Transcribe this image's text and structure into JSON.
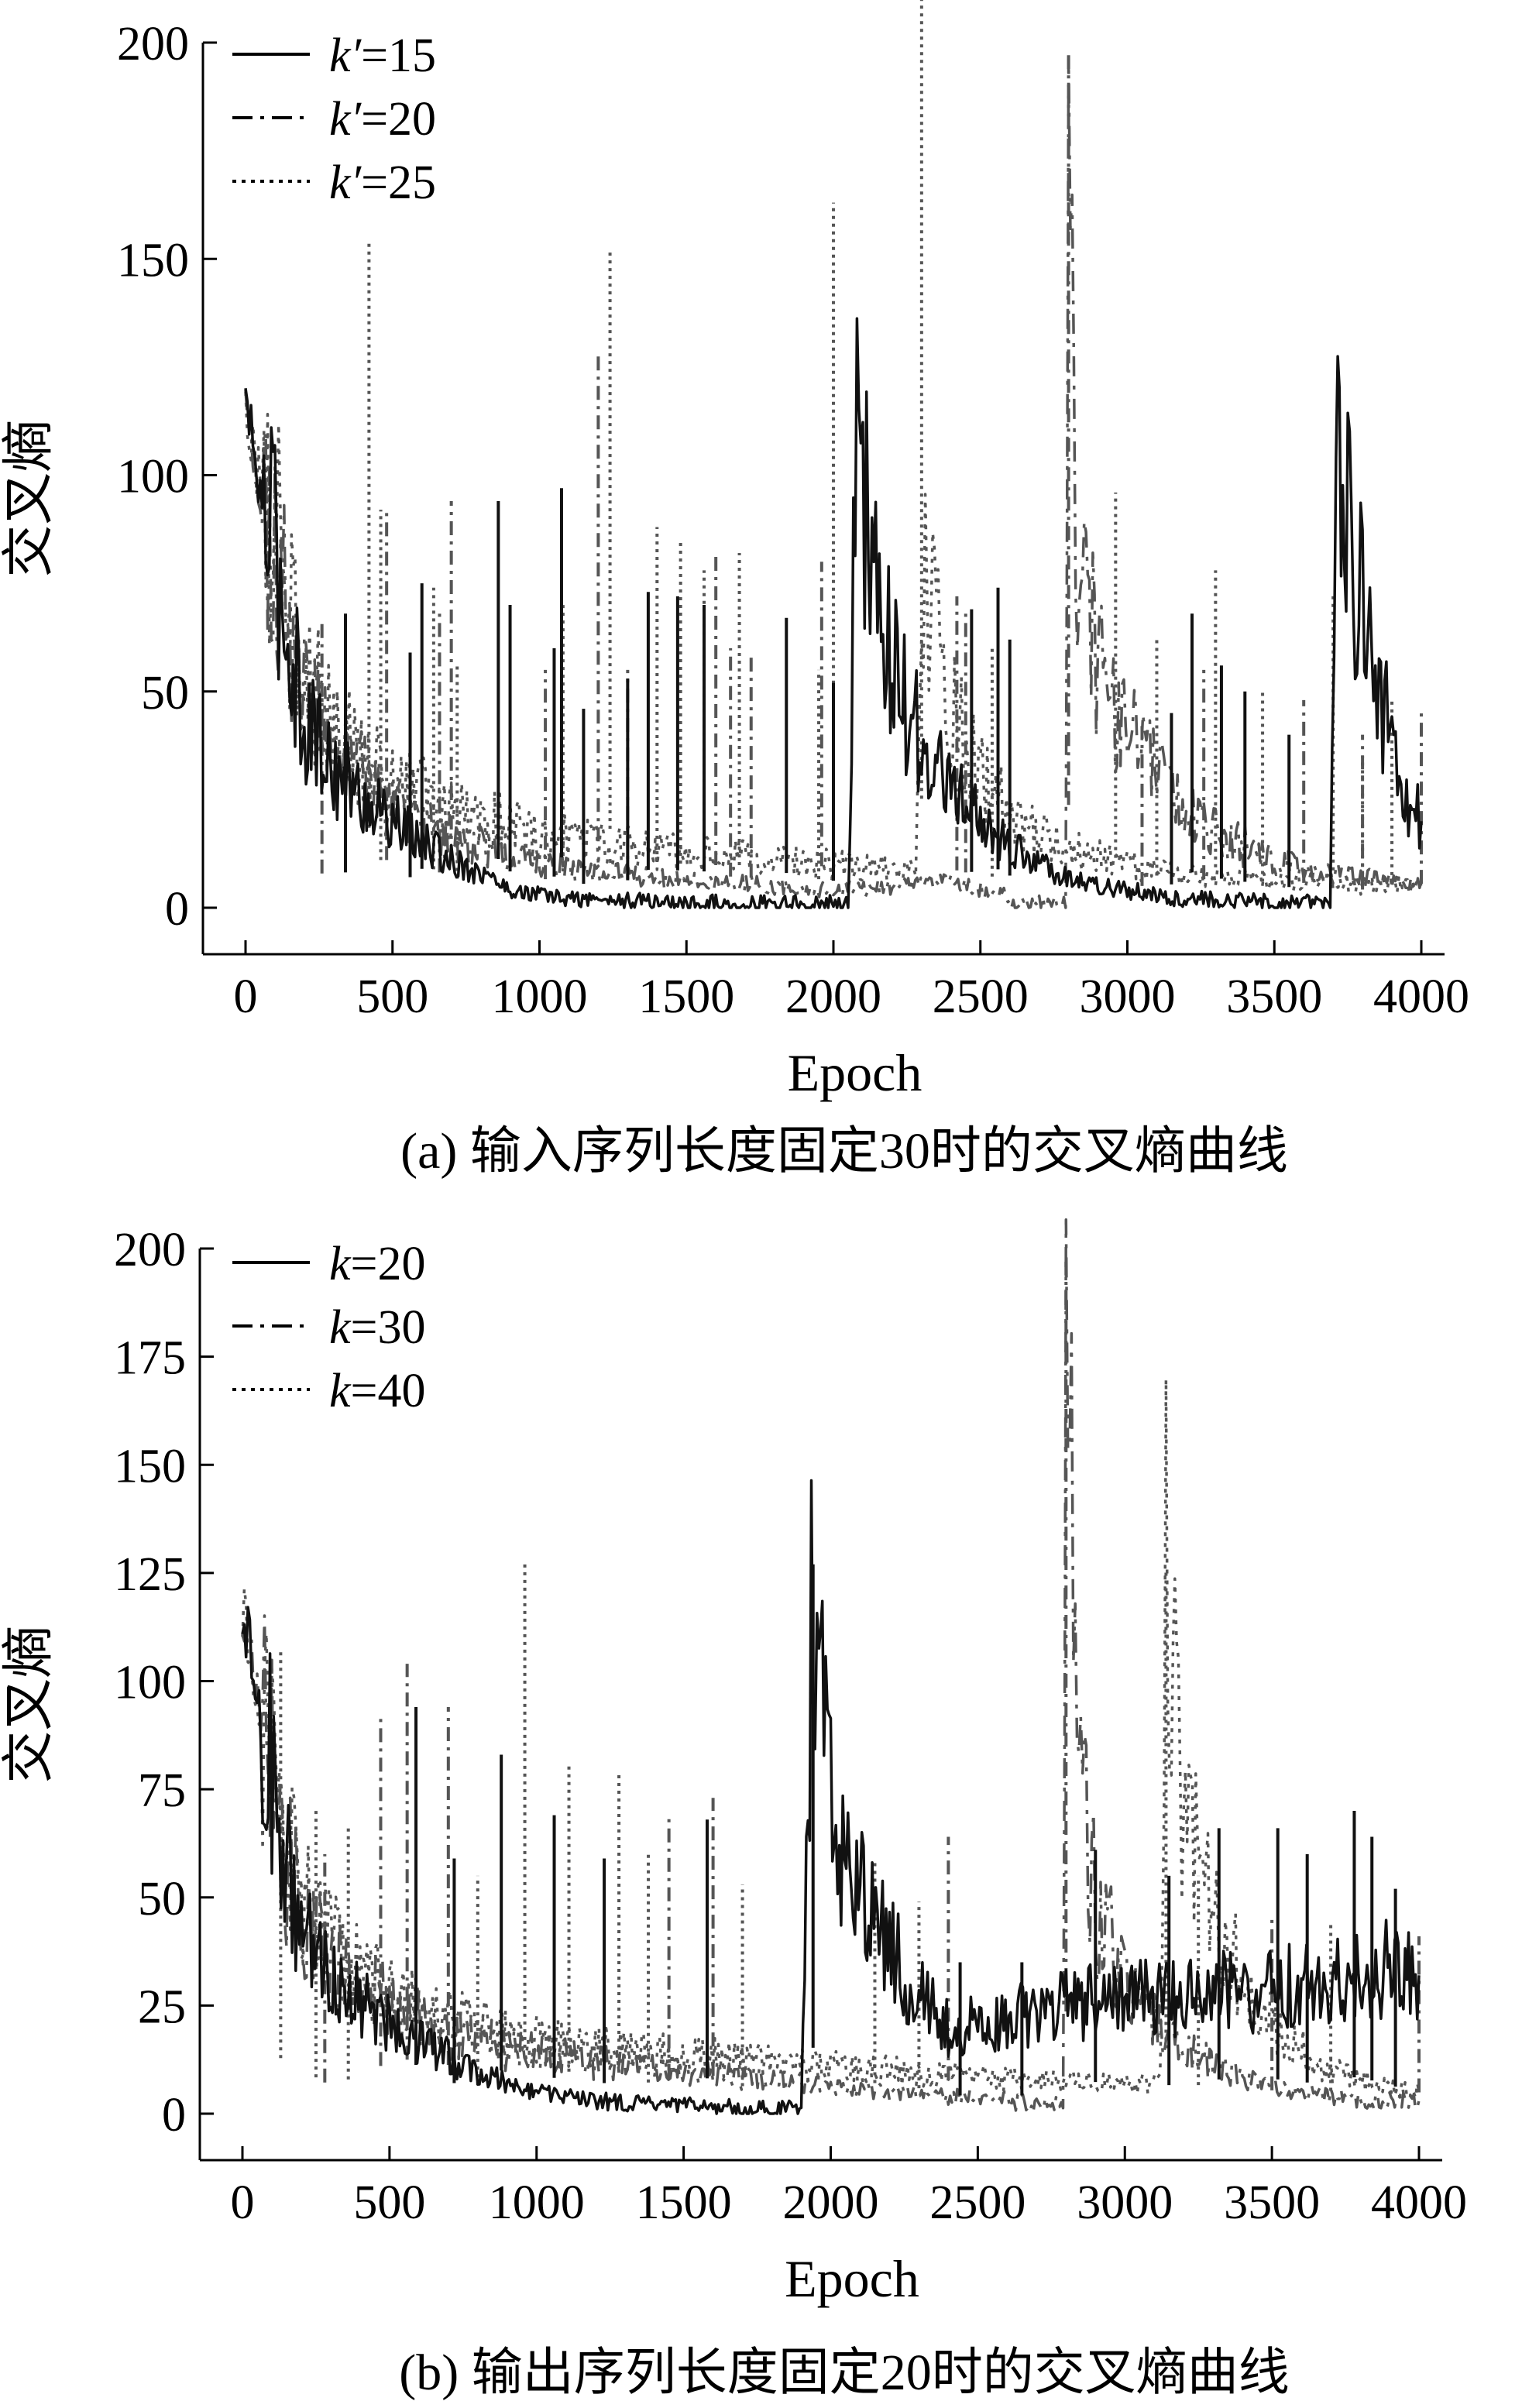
{
  "chart_data": [
    {
      "type": "line",
      "caption": "(a) 输入序列长度固定30时的交叉熵曲线",
      "xlabel": "Epoch",
      "ylabel": "交叉熵",
      "xlim": [
        0,
        4000
      ],
      "ylim": [
        0,
        200
      ],
      "xticks": [
        0,
        500,
        1000,
        1500,
        2000,
        2500,
        3000,
        3500,
        4000
      ],
      "yticks": [
        0,
        50,
        100,
        150,
        200
      ],
      "grid": false,
      "legend": "top-left",
      "series": [
        {
          "name_prefix": "k′",
          "name_value": "=15",
          "style": "solid",
          "color": "#111111",
          "x": [
            0,
            50,
            100,
            150,
            200,
            300,
            400,
            500,
            600,
            700,
            800,
            860,
            900,
            1000,
            1100,
            1200,
            1300,
            1400,
            1500,
            1600,
            1700,
            1800,
            1900,
            2000,
            2050,
            2080,
            2100,
            2150,
            2200,
            2300,
            2400,
            2500,
            2600,
            2700,
            2800,
            2900,
            3000,
            3100,
            3200,
            3300,
            3400,
            3500,
            3600,
            3690,
            3710,
            3750,
            3800,
            3850,
            3900,
            3950,
            4000
          ],
          "y": [
            118,
            95,
            82,
            60,
            44,
            32,
            25,
            20,
            15,
            11,
            8,
            6,
            4,
            3,
            2,
            2,
            1.5,
            1.5,
            1,
            1,
            1,
            1,
            1,
            1,
            1,
            117,
            95,
            70,
            55,
            38,
            27,
            20,
            14,
            10,
            7,
            5,
            4,
            3,
            2,
            2,
            1.5,
            1,
            1,
            1,
            115,
            90,
            68,
            52,
            38,
            25,
            20
          ],
          "spikes": [
            [
              340,
              68
            ],
            [
              560,
              59
            ],
            [
              600,
              75
            ],
            [
              860,
              94
            ],
            [
              900,
              70
            ],
            [
              1050,
              60
            ],
            [
              1075,
              97
            ],
            [
              1150,
              46
            ],
            [
              1300,
              53
            ],
            [
              1370,
              73
            ],
            [
              1470,
              72
            ],
            [
              1560,
              70
            ],
            [
              1840,
              67
            ],
            [
              2000,
              52
            ],
            [
              2470,
              69
            ],
            [
              2560,
              74
            ],
            [
              2600,
              62
            ],
            [
              3150,
              45
            ],
            [
              3220,
              68
            ],
            [
              3320,
              56
            ],
            [
              3400,
              50
            ],
            [
              3550,
              40
            ]
          ]
        },
        {
          "name_prefix": "k′",
          "name_value": "=20",
          "style": "dashdot",
          "color": "#555555",
          "x": [
            0,
            50,
            100,
            150,
            200,
            300,
            400,
            500,
            600,
            700,
            800,
            900,
            1000,
            1200,
            1400,
            1600,
            1800,
            2000,
            2200,
            2400,
            2580,
            2600,
            2700,
            2790,
            2800,
            2830,
            2900,
            3000,
            3100,
            3200,
            3300,
            3400,
            3500,
            3600,
            3700,
            3800,
            3900,
            4000
          ],
          "y": [
            117,
            97,
            85,
            65,
            50,
            38,
            30,
            24,
            19,
            16,
            14,
            12,
            10,
            8,
            7,
            6,
            5,
            4,
            5,
            6,
            3,
            1,
            1,
            1,
            198,
            80,
            55,
            40,
            30,
            22,
            17,
            14,
            11,
            9,
            8,
            7,
            6,
            6
          ],
          "spikes": [
            [
              260,
              66
            ],
            [
              480,
              92
            ],
            [
              660,
              68
            ],
            [
              700,
              94
            ],
            [
              1020,
              55
            ],
            [
              1200,
              128
            ],
            [
              1300,
              55
            ],
            [
              1600,
              82
            ],
            [
              1650,
              60
            ],
            [
              1720,
              58
            ],
            [
              1960,
              80
            ],
            [
              2420,
              72
            ],
            [
              2450,
              68
            ],
            [
              2800,
              198
            ],
            [
              3050,
              42
            ],
            [
              3260,
              55
            ],
            [
              3600,
              48
            ],
            [
              3800,
              40
            ],
            [
              4000,
              46
            ]
          ]
        },
        {
          "name_prefix": "k′",
          "name_value": "=25",
          "style": "dotted",
          "color": "#555555",
          "x": [
            0,
            50,
            100,
            150,
            200,
            300,
            400,
            500,
            600,
            700,
            800,
            900,
            1000,
            1200,
            1400,
            1600,
            1800,
            2000,
            2200,
            2280,
            2300,
            2350,
            2400,
            2500,
            2600,
            2700,
            2800,
            2900,
            3000,
            3100,
            3200,
            3300,
            3400,
            3500,
            3600,
            3700,
            3800,
            3900,
            4000
          ],
          "y": [
            116,
            98,
            88,
            70,
            55,
            42,
            35,
            30,
            26,
            23,
            21,
            19,
            17,
            15,
            13,
            12,
            11,
            10,
            9,
            8,
            80,
            60,
            45,
            30,
            22,
            17,
            14,
            12,
            10,
            9,
            8,
            7,
            7,
            6,
            6,
            6,
            5,
            5,
            5
          ],
          "spikes": [
            [
              420,
              154
            ],
            [
              460,
              92
            ],
            [
              640,
              74
            ],
            [
              720,
              56
            ],
            [
              1080,
              70
            ],
            [
              1240,
              152
            ],
            [
              1400,
              88
            ],
            [
              1480,
              85
            ],
            [
              1560,
              78
            ],
            [
              1680,
              82
            ],
            [
              1950,
              55
            ],
            [
              2000,
              163
            ],
            [
              2300,
              210
            ],
            [
              2540,
              60
            ],
            [
              2960,
              96
            ],
            [
              3100,
              62
            ],
            [
              3300,
              78
            ],
            [
              3460,
              50
            ],
            [
              3700,
              72
            ],
            [
              3800,
              35
            ],
            [
              3900,
              48
            ]
          ]
        }
      ]
    },
    {
      "type": "line",
      "caption": "(b) 输出序列长度固定20时的交叉熵曲线",
      "xlabel": "Epoch",
      "ylabel": "交叉熵",
      "xlim": [
        0,
        4000
      ],
      "ylim": [
        0,
        200
      ],
      "xticks": [
        0,
        500,
        1000,
        1500,
        2000,
        2500,
        3000,
        3500,
        4000
      ],
      "yticks": [
        0,
        25,
        50,
        75,
        100,
        125,
        150,
        175,
        200
      ],
      "grid": false,
      "legend": "top-left",
      "series": [
        {
          "name_prefix": "k",
          "name_value": "=20",
          "style": "solid",
          "color": "#111111",
          "x": [
            0,
            50,
            100,
            150,
            200,
            300,
            400,
            500,
            600,
            700,
            800,
            900,
            1000,
            1200,
            1400,
            1600,
            1800,
            1900,
            1940,
            1960,
            2000,
            2100,
            2200,
            2300,
            2400,
            2500,
            2600,
            2700,
            2800,
            2900,
            3000,
            3100,
            3200,
            3300,
            3400,
            3500,
            3600,
            3700,
            3800,
            3900,
            4000
          ],
          "y": [
            119,
            95,
            78,
            55,
            42,
            32,
            26,
            21,
            17,
            13,
            10,
            7,
            5,
            3,
            2,
            1.5,
            1,
            1,
            127,
            100,
            75,
            52,
            38,
            27,
            20,
            20,
            22,
            24,
            25,
            26,
            26,
            27,
            27,
            28,
            28,
            29,
            30,
            30,
            32,
            34,
            32
          ],
          "spikes": [
            [
              590,
              94
            ],
            [
              720,
              59
            ],
            [
              880,
              83
            ],
            [
              1060,
              69
            ],
            [
              1230,
              59
            ],
            [
              1580,
              68
            ],
            [
              1940,
              127
            ],
            [
              2440,
              35
            ],
            [
              2650,
              35
            ],
            [
              2900,
              61
            ],
            [
              3150,
              55
            ],
            [
              3320,
              66
            ],
            [
              3520,
              66
            ],
            [
              3620,
              60
            ],
            [
              3780,
              70
            ],
            [
              3840,
              64
            ],
            [
              3920,
              52
            ]
          ]
        },
        {
          "name_prefix": "k",
          "name_value": "=30",
          "style": "dashdot",
          "color": "#555555",
          "x": [
            0,
            50,
            100,
            150,
            200,
            300,
            400,
            500,
            600,
            700,
            800,
            900,
            1000,
            1200,
            1400,
            1600,
            1800,
            2000,
            2200,
            2400,
            2600,
            2700,
            2790,
            2800,
            2850,
            2900,
            3000,
            3100,
            3200,
            3300,
            3400,
            3500,
            3600,
            3700,
            3800,
            3900,
            4000
          ],
          "y": [
            118,
            97,
            80,
            58,
            46,
            36,
            30,
            25,
            22,
            19,
            17,
            15,
            14,
            12,
            10,
            9,
            8,
            6,
            5,
            4,
            3,
            2,
            2,
            197,
            80,
            48,
            32,
            22,
            16,
            11,
            8,
            6,
            5,
            4,
            3,
            3,
            3
          ],
          "spikes": [
            [
              280,
              60
            ],
            [
              470,
              92
            ],
            [
              560,
              104
            ],
            [
              700,
              94
            ],
            [
              1450,
              69
            ],
            [
              1600,
              73
            ],
            [
              2400,
              64
            ],
            [
              2800,
              197
            ],
            [
              3500,
              45
            ],
            [
              4000,
              41
            ]
          ]
        },
        {
          "name_prefix": "k",
          "name_value": "=40",
          "style": "dotted",
          "color": "#555555",
          "x": [
            0,
            50,
            100,
            150,
            200,
            300,
            400,
            500,
            600,
            700,
            800,
            900,
            1000,
            1200,
            1400,
            1600,
            1800,
            2000,
            2200,
            2400,
            2600,
            2800,
            3000,
            3120,
            3140,
            3200,
            3300,
            3400,
            3500,
            3600,
            3700,
            3800,
            3900,
            4000
          ],
          "y": [
            117,
            98,
            85,
            62,
            50,
            40,
            33,
            28,
            25,
            22,
            20,
            18,
            17,
            15,
            14,
            13,
            12,
            11,
            10,
            9,
            8,
            8,
            7,
            7,
            126,
            70,
            45,
            32,
            22,
            15,
            10,
            8,
            6,
            5
          ],
          "spikes": [
            [
              130,
              107
            ],
            [
              250,
              70
            ],
            [
              360,
              66
            ],
            [
              800,
              55
            ],
            [
              960,
              127
            ],
            [
              1110,
              81
            ],
            [
              1280,
              79
            ],
            [
              1380,
              60
            ],
            [
              1700,
              53
            ],
            [
              2150,
              59
            ],
            [
              2300,
              49
            ],
            [
              3140,
              126
            ],
            [
              3250,
              55
            ],
            [
              3700,
              44
            ]
          ]
        }
      ]
    }
  ]
}
